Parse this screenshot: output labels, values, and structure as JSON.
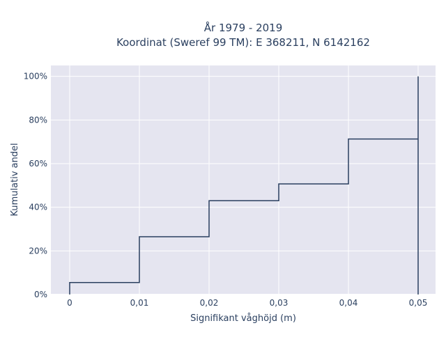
{
  "chart_data": {
    "type": "line",
    "line_shape": "step",
    "title_line1": "År 1979 - 2019",
    "title_line2": "Koordinat (Sweref 99 TM): E 368211, N 6142162",
    "xlabel": "Signifikant våghöjd (m)",
    "ylabel": "Kumulativ andel",
    "x": [
      0,
      0.01,
      0.02,
      0.03,
      0.04,
      0.05,
      0.05
    ],
    "y": [
      0.055,
      0.265,
      0.43,
      0.507,
      0.713,
      1.0,
      0.0
    ],
    "xlim": [
      -0.0027,
      0.0525
    ],
    "ylim": [
      0,
      1.05
    ],
    "xticks": [
      0,
      0.01,
      0.02,
      0.03,
      0.04,
      0.05
    ],
    "xtick_labels": [
      "0",
      "0,01",
      "0,02",
      "0,03",
      "0,04",
      "0,05"
    ],
    "yticks": [
      0,
      0.2,
      0.4,
      0.6,
      0.8,
      1.0
    ],
    "ytick_labels": [
      "0%",
      "20%",
      "40%",
      "60%",
      "80%",
      "100%"
    ],
    "grid": true,
    "colors": {
      "plot_background": "#e5e5f0",
      "grid": "#ffffff",
      "line": "#2a3f5f"
    }
  }
}
